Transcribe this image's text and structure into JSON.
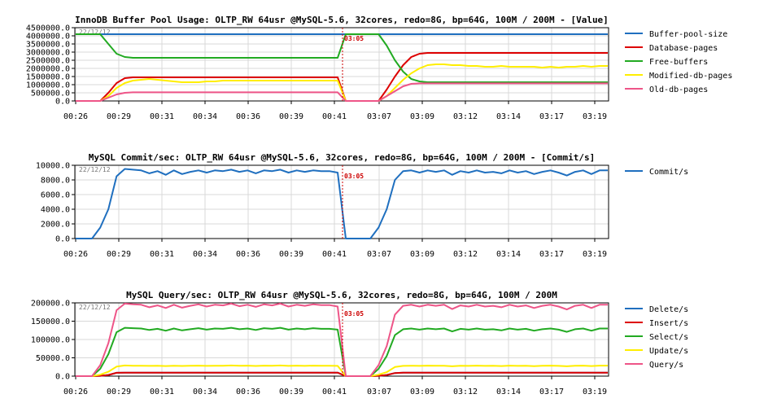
{
  "chart_data": [
    {
      "type": "line",
      "title": "InnoDB Buffer Pool Usage: OLTP_RW 64usr @MySQL-5.6, 32cores, redo=8G, bp=64G, 100M / 200M - [Value]",
      "date_stamp": "22/12/12",
      "marker_label": "03:05",
      "x_ticks": [
        "00:26",
        "00:29",
        "00:31",
        "00:34",
        "00:36",
        "00:39",
        "00:41",
        "03:07",
        "03:09",
        "03:12",
        "03:14",
        "03:17",
        "03:19"
      ],
      "y_ticks": [
        "0.0",
        "500000.0",
        "1000000.0",
        "1500000.0",
        "2000000.0",
        "2500000.0",
        "3000000.0",
        "3500000.0",
        "4000000.0",
        "4500000.0"
      ],
      "ylim": [
        0,
        4500000
      ],
      "series": [
        {
          "name": "Buffer-pool-size",
          "color": "#1f6fbf",
          "values": [
            4100000,
            4100000,
            4100000,
            4100000,
            4100000,
            4100000,
            4100000,
            4100000,
            4100000,
            4100000,
            4100000,
            4100000,
            4100000,
            4100000,
            4100000,
            4100000,
            4100000,
            4100000,
            4100000,
            4100000,
            4100000,
            4100000,
            4100000,
            4100000,
            4100000,
            4100000,
            4100000,
            4100000,
            4100000,
            4100000,
            4100000,
            4100000,
            4100000,
            4100000,
            4100000,
            4100000,
            4100000,
            4100000,
            4100000,
            4100000,
            4100000,
            4100000,
            4100000,
            4100000,
            4100000,
            4100000,
            4100000,
            4100000,
            4100000,
            4100000,
            4100000,
            4100000,
            4100000,
            4100000,
            4100000,
            4100000,
            4100000,
            4100000,
            4100000,
            4100000,
            4100000,
            4100000,
            4100000,
            4100000,
            4100000,
            4100000
          ]
        },
        {
          "name": "Database-pages",
          "color": "#dd0000",
          "values": [
            0,
            0,
            0,
            0,
            500000,
            1100000,
            1400000,
            1450000,
            1450000,
            1450000,
            1450000,
            1450000,
            1450000,
            1450000,
            1450000,
            1450000,
            1450000,
            1450000,
            1450000,
            1450000,
            1450000,
            1450000,
            1450000,
            1450000,
            1450000,
            1450000,
            1450000,
            1450000,
            1450000,
            1450000,
            1450000,
            1450000,
            1450000,
            0,
            0,
            0,
            0,
            0,
            700000,
            1500000,
            2200000,
            2700000,
            2900000,
            2950000,
            2950000,
            2950000,
            2950000,
            2950000,
            2950000,
            2950000,
            2950000,
            2950000,
            2950000,
            2950000,
            2950000,
            2950000,
            2950000,
            2950000,
            2950000,
            2950000,
            2950000,
            2950000,
            2950000,
            2950000,
            2950000,
            2950000
          ]
        },
        {
          "name": "Free-buffers",
          "color": "#22aa22",
          "values": [
            4100000,
            4100000,
            4100000,
            4100000,
            3500000,
            2900000,
            2700000,
            2650000,
            2650000,
            2650000,
            2650000,
            2650000,
            2650000,
            2650000,
            2650000,
            2650000,
            2650000,
            2650000,
            2650000,
            2650000,
            2650000,
            2650000,
            2650000,
            2650000,
            2650000,
            2650000,
            2650000,
            2650000,
            2650000,
            2650000,
            2650000,
            2650000,
            2650000,
            4100000,
            4100000,
            4100000,
            4100000,
            4100000,
            3400000,
            2500000,
            1800000,
            1350000,
            1200000,
            1150000,
            1150000,
            1150000,
            1150000,
            1150000,
            1150000,
            1150000,
            1150000,
            1150000,
            1150000,
            1150000,
            1150000,
            1150000,
            1150000,
            1150000,
            1150000,
            1150000,
            1150000,
            1150000,
            1150000,
            1150000,
            1150000,
            1150000
          ]
        },
        {
          "name": "Modified-db-pages",
          "color": "#ffee00",
          "values": [
            0,
            0,
            0,
            0,
            300000,
            800000,
            1100000,
            1250000,
            1300000,
            1350000,
            1300000,
            1250000,
            1200000,
            1150000,
            1150000,
            1150000,
            1200000,
            1200000,
            1250000,
            1250000,
            1250000,
            1250000,
            1250000,
            1250000,
            1250000,
            1250000,
            1250000,
            1250000,
            1250000,
            1250000,
            1250000,
            1250000,
            1250000,
            0,
            0,
            0,
            0,
            0,
            300000,
            800000,
            1300000,
            1700000,
            2000000,
            2200000,
            2250000,
            2250000,
            2200000,
            2200000,
            2150000,
            2150000,
            2100000,
            2100000,
            2150000,
            2100000,
            2100000,
            2100000,
            2100000,
            2050000,
            2100000,
            2050000,
            2100000,
            2100000,
            2150000,
            2100000,
            2150000,
            2150000
          ]
        },
        {
          "name": "Old-db-pages",
          "color": "#ee5588",
          "values": [
            0,
            0,
            0,
            0,
            200000,
            400000,
            500000,
            530000,
            530000,
            530000,
            530000,
            530000,
            530000,
            530000,
            530000,
            530000,
            530000,
            530000,
            530000,
            530000,
            530000,
            530000,
            530000,
            530000,
            530000,
            530000,
            530000,
            530000,
            530000,
            530000,
            530000,
            530000,
            530000,
            0,
            0,
            0,
            0,
            0,
            300000,
            600000,
            900000,
            1050000,
            1080000,
            1080000,
            1080000,
            1080000,
            1080000,
            1080000,
            1080000,
            1080000,
            1080000,
            1080000,
            1080000,
            1080000,
            1080000,
            1080000,
            1080000,
            1080000,
            1080000,
            1080000,
            1080000,
            1080000,
            1080000,
            1080000,
            1080000,
            1080000
          ]
        }
      ]
    },
    {
      "type": "line",
      "title": "MySQL Commit/sec: OLTP_RW 64usr @MySQL-5.6, 32cores, redo=8G, bp=64G, 100M / 200M - [Commit/s]",
      "date_stamp": "22/12/12",
      "marker_label": "03:05",
      "x_ticks": [
        "00:26",
        "00:29",
        "00:31",
        "00:34",
        "00:36",
        "00:39",
        "00:41",
        "03:07",
        "03:09",
        "03:12",
        "03:14",
        "03:17",
        "03:19"
      ],
      "y_ticks": [
        "0.0",
        "2000.0",
        "4000.0",
        "6000.0",
        "8000.0",
        "10000.0"
      ],
      "ylim": [
        0,
        10000
      ],
      "series": [
        {
          "name": "Commit/s",
          "color": "#1f6fbf",
          "values": [
            0,
            0,
            0,
            1500,
            4000,
            8500,
            9500,
            9400,
            9300,
            8900,
            9200,
            8700,
            9300,
            8800,
            9100,
            9300,
            9000,
            9300,
            9200,
            9400,
            9100,
            9300,
            8900,
            9300,
            9200,
            9400,
            9000,
            9300,
            9100,
            9300,
            9200,
            9200,
            9000,
            0,
            0,
            0,
            0,
            1500,
            4000,
            8000,
            9200,
            9300,
            9000,
            9300,
            9100,
            9300,
            8700,
            9200,
            9000,
            9300,
            9000,
            9100,
            8900,
            9300,
            9000,
            9200,
            8800,
            9100,
            9300,
            9000,
            8600,
            9100,
            9300,
            8800,
            9300,
            9300
          ]
        }
      ]
    },
    {
      "type": "line",
      "title": "MySQL Query/sec: OLTP_RW 64usr @MySQL-5.6, 32cores, redo=8G, bp=64G, 100M / 200M",
      "date_stamp": "22/12/12",
      "marker_label": "03:05",
      "x_ticks": [
        "00:26",
        "00:29",
        "00:31",
        "00:34",
        "00:36",
        "00:39",
        "00:41",
        "03:07",
        "03:09",
        "03:12",
        "03:14",
        "03:17",
        "03:19"
      ],
      "y_ticks": [
        "0.0",
        "50000.0",
        "100000.0",
        "150000.0",
        "200000.0"
      ],
      "ylim": [
        0,
        200000
      ],
      "series": [
        {
          "name": "Delete/s",
          "color": "#1f6fbf",
          "values": [
            0,
            0,
            0,
            1000,
            3000,
            9000,
            9500,
            9500,
            9500,
            9500,
            9500,
            9500,
            9500,
            9500,
            9500,
            9500,
            9500,
            9500,
            9500,
            9500,
            9500,
            9500,
            9500,
            9500,
            9500,
            9500,
            9500,
            9500,
            9500,
            9500,
            9500,
            9500,
            9500,
            0,
            0,
            0,
            0,
            1000,
            3000,
            8500,
            9500,
            9500,
            9500,
            9500,
            9500,
            9500,
            9500,
            9500,
            9500,
            9500,
            9500,
            9500,
            9500,
            9500,
            9500,
            9500,
            9500,
            9500,
            9500,
            9500,
            9500,
            9500,
            9500,
            9500,
            9500,
            9500
          ]
        },
        {
          "name": "Insert/s",
          "color": "#dd0000",
          "values": [
            0,
            0,
            0,
            1000,
            3000,
            9000,
            9500,
            9500,
            9500,
            9500,
            9500,
            9500,
            9500,
            9500,
            9500,
            9500,
            9500,
            9500,
            9500,
            9500,
            9500,
            9500,
            9500,
            9500,
            9500,
            9500,
            9500,
            9500,
            9500,
            9500,
            9500,
            9500,
            9500,
            0,
            0,
            0,
            0,
            1000,
            3000,
            8500,
            9500,
            9500,
            9500,
            9500,
            9500,
            9500,
            9500,
            9500,
            9500,
            9500,
            9500,
            9500,
            9500,
            9500,
            9500,
            9500,
            9500,
            9500,
            9500,
            9500,
            9500,
            9500,
            9500,
            9500,
            9500,
            9500
          ]
        },
        {
          "name": "Select/s",
          "color": "#22aa22",
          "values": [
            0,
            0,
            0,
            20000,
            60000,
            120000,
            132000,
            131000,
            130000,
            126000,
            129000,
            124000,
            130000,
            125000,
            128000,
            131000,
            127000,
            130000,
            129000,
            132000,
            128000,
            130000,
            126000,
            131000,
            129000,
            132000,
            127000,
            130000,
            128000,
            131000,
            129000,
            129000,
            127000,
            0,
            0,
            0,
            0,
            20000,
            55000,
            112000,
            128000,
            130000,
            127000,
            130000,
            128000,
            130000,
            122000,
            129000,
            127000,
            130000,
            127000,
            128000,
            125000,
            130000,
            127000,
            129000,
            124000,
            128000,
            130000,
            127000,
            121000,
            128000,
            130000,
            124000,
            130000,
            130000
          ]
        },
        {
          "name": "Update/s",
          "color": "#ffee00",
          "values": [
            0,
            0,
            0,
            4000,
            12000,
            26000,
            29000,
            28500,
            28500,
            28000,
            28500,
            27500,
            28500,
            27800,
            28200,
            28700,
            28000,
            28500,
            28300,
            29000,
            28200,
            28600,
            27800,
            28700,
            28300,
            29000,
            28000,
            28600,
            28100,
            28700,
            28400,
            28400,
            28000,
            0,
            0,
            0,
            0,
            4000,
            11000,
            25000,
            28000,
            28500,
            28000,
            28600,
            28200,
            28500,
            27000,
            28400,
            28000,
            28600,
            28000,
            28200,
            27600,
            28600,
            28000,
            28400,
            27400,
            28200,
            28600,
            28000,
            26800,
            28200,
            28600,
            27600,
            28600,
            28600
          ]
        },
        {
          "name": "Query/s",
          "color": "#ee5588",
          "values": [
            0,
            0,
            0,
            30000,
            90000,
            180000,
            198000,
            196000,
            195000,
            188000,
            193000,
            186000,
            195000,
            187000,
            192000,
            196000,
            190000,
            195000,
            193000,
            198000,
            191000,
            195000,
            189000,
            196000,
            193000,
            198000,
            190000,
            195000,
            192000,
            196000,
            194000,
            194000,
            190000,
            0,
            0,
            0,
            0,
            30000,
            82000,
            168000,
            192000,
            195000,
            190000,
            195000,
            192000,
            195000,
            183000,
            193000,
            190000,
            195000,
            190000,
            192000,
            188000,
            195000,
            190000,
            193000,
            186000,
            192000,
            195000,
            190000,
            182000,
            192000,
            195000,
            186000,
            195000,
            195000
          ]
        }
      ]
    }
  ]
}
